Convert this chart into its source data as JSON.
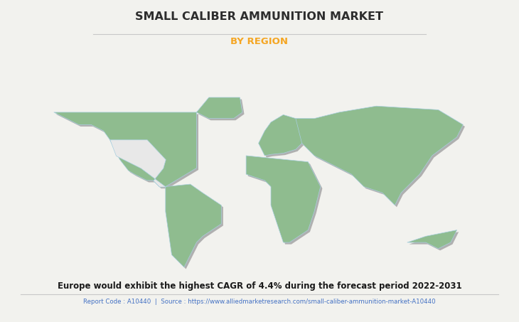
{
  "title": "SMALL CALIBER AMMUNITION MARKET",
  "subtitle": "BY REGION",
  "subtitle_color": "#F5A623",
  "title_color": "#2d2d2d",
  "background_color": "#f2f2ee",
  "map_land_color": "#8FBC8F",
  "map_usa_color": "#e8e8e8",
  "map_shadow_color": "#b0b0b0",
  "map_border_color": "#a8cfe0",
  "footnote": "Europe would exhibit the highest CAGR of 4.4% during the forecast period 2022-2031",
  "source_text": "Report Code : A10440  |  Source : https://www.alliedmarketresearch.com/small-caliber-ammunition-market-A10440",
  "source_color": "#4472c4",
  "footnote_color": "#1a1a1a",
  "divider_color": "#c8c8c8"
}
